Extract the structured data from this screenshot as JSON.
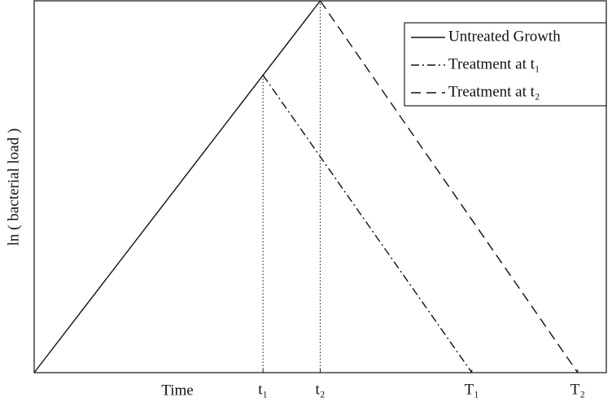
{
  "chart_data": {
    "type": "line",
    "xlabel": "Time",
    "ylabel": "ln ( bacterial load )",
    "xlim": [
      0,
      100
    ],
    "ylim": [
      0,
      100
    ],
    "xticks": [
      {
        "value": 40,
        "label": "t₁"
      },
      {
        "value": 50,
        "label": "t₂"
      },
      {
        "value": 76.5,
        "label": "T₁"
      },
      {
        "value": 95,
        "label": "T₂"
      }
    ],
    "drop_lines": true,
    "legend": "upper right",
    "series": [
      {
        "name": "Untreated Growth",
        "color": "#111111",
        "dash": "solid",
        "x": [
          0,
          50
        ],
        "values": [
          0,
          100
        ]
      },
      {
        "name": "Treatment at t₁",
        "color": "#111111",
        "dash": "dashdot",
        "x": [
          40,
          76.5
        ],
        "values": [
          80,
          0
        ]
      },
      {
        "name": "Treatment at t₂",
        "color": "#111111",
        "dash": "dashed",
        "x": [
          50,
          95
        ],
        "values": [
          100,
          0
        ]
      }
    ]
  }
}
